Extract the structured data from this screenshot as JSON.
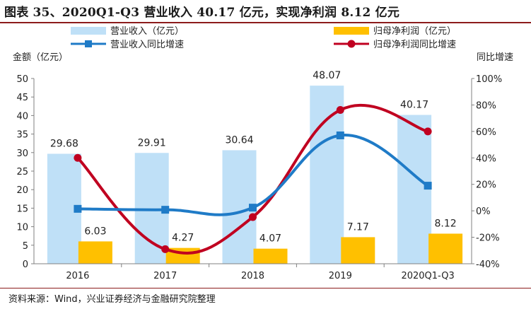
{
  "title": "图表 35、2020Q1-Q3 营业收入 40.17 亿元，实现净利润 8.12 亿元",
  "source": "资料来源：Wind，兴业证券经济与金融研究院整理",
  "colors": {
    "revenue_bar": "#bfe0f7",
    "profit_bar": "#ffc000",
    "revenue_growth_line": "#1f7bc7",
    "profit_growth_line": "#c00020",
    "title_rule": "#8c1c1c"
  },
  "chart_data": {
    "type": "bar",
    "categories": [
      "2016",
      "2017",
      "2018",
      "2019",
      "2020Q1-Q3"
    ],
    "y_left_label": "金额（亿元）",
    "y_right_label": "同比增速",
    "y_left_range": [
      0,
      50
    ],
    "y_left_ticks": [
      "0",
      "5",
      "10",
      "15",
      "20",
      "25",
      "30",
      "35",
      "40",
      "45",
      "50"
    ],
    "y_right_range": [
      -40,
      100
    ],
    "y_right_ticks": [
      "-40%",
      "-20%",
      "0%",
      "20%",
      "40%",
      "60%",
      "80%",
      "100%"
    ],
    "grid": false,
    "legend_position": "top",
    "series": [
      {
        "name": "营业收入（亿元）",
        "kind": "bar",
        "axis": "left",
        "values": [
          29.68,
          29.91,
          30.64,
          48.07,
          40.17
        ],
        "labels": [
          "29.68",
          "29.91",
          "30.64",
          "48.07",
          "40.17"
        ]
      },
      {
        "name": "归母净利润（亿元）",
        "kind": "bar",
        "axis": "left",
        "values": [
          6.03,
          4.27,
          4.07,
          7.17,
          8.12
        ],
        "labels": [
          "6.03",
          "4.27",
          "4.07",
          "7.17",
          "8.12"
        ]
      },
      {
        "name": "营业收入同比增速",
        "kind": "line",
        "axis": "right",
        "marker": "square",
        "values": [
          1.5,
          0.8,
          2.4,
          57.0,
          19.0
        ]
      },
      {
        "name": "归母净利润同比增速",
        "kind": "line",
        "axis": "right",
        "marker": "circle",
        "values": [
          40.0,
          -29.0,
          -4.7,
          76.2,
          60.0
        ]
      }
    ]
  }
}
